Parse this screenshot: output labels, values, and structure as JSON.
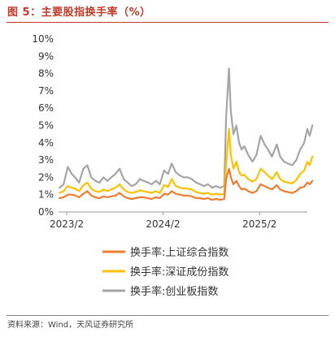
{
  "figure_title": "图 5：主要股指换手率（%）",
  "source": "资料来源：Wind，天风证券研究所",
  "chart_data": {
    "type": "line",
    "title": "",
    "xlabel": "",
    "ylabel": "",
    "ylim": [
      0,
      10
    ],
    "yticks": [
      "0%",
      "1%",
      "2%",
      "3%",
      "4%",
      "5%",
      "6%",
      "7%",
      "8%",
      "9%",
      "10%"
    ],
    "x_start": "2023-01",
    "x_end": "2025-08",
    "xticks": [
      "2023/2",
      "2024/2",
      "2025/2"
    ],
    "grid": false,
    "legend_position": "bottom",
    "series": [
      {
        "name": "换手率:上证综合指数",
        "color": "#ed7d31",
        "x": [
          "2023-01-05",
          "2023-01-20",
          "2023-02-05",
          "2023-02-20",
          "2023-03-05",
          "2023-03-20",
          "2023-04-05",
          "2023-04-20",
          "2023-05-05",
          "2023-05-20",
          "2023-06-05",
          "2023-06-20",
          "2023-07-05",
          "2023-07-20",
          "2023-08-05",
          "2023-08-20",
          "2023-09-05",
          "2023-09-20",
          "2023-10-05",
          "2023-10-20",
          "2023-11-05",
          "2023-11-20",
          "2023-12-05",
          "2023-12-20",
          "2024-01-05",
          "2024-01-20",
          "2024-02-05",
          "2024-02-20",
          "2024-03-05",
          "2024-03-20",
          "2024-04-05",
          "2024-04-20",
          "2024-05-05",
          "2024-05-20",
          "2024-06-05",
          "2024-06-20",
          "2024-07-05",
          "2024-07-20",
          "2024-08-05",
          "2024-08-20",
          "2024-09-05",
          "2024-09-20",
          "2024-09-27",
          "2024-10-08",
          "2024-10-15",
          "2024-10-25",
          "2024-11-05",
          "2024-11-15",
          "2024-11-25",
          "2024-12-05",
          "2024-12-20",
          "2025-01-05",
          "2025-01-20",
          "2025-02-05",
          "2025-02-20",
          "2025-03-05",
          "2025-03-20",
          "2025-04-07",
          "2025-04-20",
          "2025-05-05",
          "2025-05-20",
          "2025-06-05",
          "2025-06-20",
          "2025-07-05",
          "2025-07-20",
          "2025-08-01",
          "2025-08-10",
          "2025-08-20"
        ],
        "values": [
          0.8,
          0.85,
          1.0,
          1.0,
          0.95,
          0.85,
          1.05,
          1.2,
          0.95,
          0.85,
          0.8,
          0.9,
          0.85,
          0.9,
          0.95,
          1.1,
          0.9,
          0.8,
          0.75,
          0.8,
          0.85,
          0.85,
          0.8,
          0.75,
          0.85,
          0.8,
          1.05,
          1.0,
          1.2,
          1.05,
          1.0,
          0.95,
          0.95,
          0.9,
          0.8,
          0.8,
          0.75,
          0.8,
          0.7,
          0.75,
          0.7,
          0.75,
          1.9,
          2.5,
          2.0,
          1.6,
          1.8,
          1.5,
          1.3,
          1.35,
          1.2,
          1.1,
          1.2,
          1.6,
          1.5,
          1.4,
          1.3,
          1.55,
          1.3,
          1.2,
          1.15,
          1.1,
          1.2,
          1.4,
          1.45,
          1.7,
          1.6,
          1.8
        ]
      },
      {
        "name": "换手率:深证成份指数",
        "color": "#ffc000",
        "x": [
          "2023-01-05",
          "2023-01-20",
          "2023-02-05",
          "2023-02-20",
          "2023-03-05",
          "2023-03-20",
          "2023-04-05",
          "2023-04-20",
          "2023-05-05",
          "2023-05-20",
          "2023-06-05",
          "2023-06-20",
          "2023-07-05",
          "2023-07-20",
          "2023-08-05",
          "2023-08-20",
          "2023-09-05",
          "2023-09-20",
          "2023-10-05",
          "2023-10-20",
          "2023-11-05",
          "2023-11-20",
          "2023-12-05",
          "2023-12-20",
          "2024-01-05",
          "2024-01-20",
          "2024-02-05",
          "2024-02-20",
          "2024-03-05",
          "2024-03-20",
          "2024-04-05",
          "2024-04-20",
          "2024-05-05",
          "2024-05-20",
          "2024-06-05",
          "2024-06-20",
          "2024-07-05",
          "2024-07-20",
          "2024-08-05",
          "2024-08-20",
          "2024-09-05",
          "2024-09-20",
          "2024-09-27",
          "2024-10-08",
          "2024-10-15",
          "2024-10-25",
          "2024-11-05",
          "2024-11-15",
          "2024-11-25",
          "2024-12-05",
          "2024-12-20",
          "2025-01-05",
          "2025-01-20",
          "2025-02-05",
          "2025-02-20",
          "2025-03-05",
          "2025-03-20",
          "2025-04-07",
          "2025-04-20",
          "2025-05-05",
          "2025-05-20",
          "2025-06-05",
          "2025-06-20",
          "2025-07-05",
          "2025-07-20",
          "2025-08-01",
          "2025-08-10",
          "2025-08-20"
        ],
        "values": [
          1.1,
          1.2,
          1.5,
          1.4,
          1.35,
          1.2,
          1.55,
          1.7,
          1.35,
          1.2,
          1.15,
          1.3,
          1.2,
          1.3,
          1.4,
          1.6,
          1.3,
          1.15,
          1.1,
          1.15,
          1.25,
          1.2,
          1.15,
          1.1,
          1.2,
          1.1,
          1.55,
          1.45,
          1.9,
          1.5,
          1.4,
          1.35,
          1.35,
          1.3,
          1.15,
          1.1,
          1.05,
          1.1,
          1.0,
          1.05,
          1.0,
          1.05,
          2.8,
          4.8,
          3.3,
          2.5,
          2.9,
          2.3,
          2.1,
          2.15,
          1.9,
          1.75,
          1.9,
          2.5,
          2.3,
          2.1,
          1.9,
          2.3,
          1.9,
          1.75,
          1.7,
          1.65,
          1.85,
          2.2,
          2.4,
          2.9,
          2.7,
          3.2
        ]
      },
      {
        "name": "换手率:创业板指数",
        "color": "#a5a5a5",
        "x": [
          "2023-01-05",
          "2023-01-20",
          "2023-02-05",
          "2023-02-20",
          "2023-03-05",
          "2023-03-20",
          "2023-04-05",
          "2023-04-20",
          "2023-05-05",
          "2023-05-20",
          "2023-06-05",
          "2023-06-20",
          "2023-07-05",
          "2023-07-20",
          "2023-08-05",
          "2023-08-20",
          "2023-09-05",
          "2023-09-20",
          "2023-10-05",
          "2023-10-20",
          "2023-11-05",
          "2023-11-20",
          "2023-12-05",
          "2023-12-20",
          "2024-01-05",
          "2024-01-20",
          "2024-02-05",
          "2024-02-20",
          "2024-03-05",
          "2024-03-20",
          "2024-04-05",
          "2024-04-20",
          "2024-05-05",
          "2024-05-20",
          "2024-06-05",
          "2024-06-20",
          "2024-07-05",
          "2024-07-20",
          "2024-08-05",
          "2024-08-20",
          "2024-09-05",
          "2024-09-20",
          "2024-09-27",
          "2024-10-08",
          "2024-10-15",
          "2024-10-25",
          "2024-11-05",
          "2024-11-15",
          "2024-11-25",
          "2024-12-05",
          "2024-12-20",
          "2025-01-05",
          "2025-01-20",
          "2025-02-05",
          "2025-02-20",
          "2025-03-05",
          "2025-03-20",
          "2025-04-07",
          "2025-04-20",
          "2025-05-05",
          "2025-05-20",
          "2025-06-05",
          "2025-06-20",
          "2025-07-05",
          "2025-07-20",
          "2025-08-01",
          "2025-08-10",
          "2025-08-20"
        ],
        "values": [
          1.4,
          1.6,
          2.6,
          2.2,
          2.0,
          1.7,
          2.5,
          2.7,
          2.0,
          1.8,
          1.7,
          2.0,
          1.8,
          2.0,
          2.2,
          2.5,
          1.9,
          1.7,
          1.5,
          1.6,
          1.9,
          1.8,
          1.7,
          1.6,
          1.8,
          1.6,
          2.4,
          2.2,
          2.8,
          2.3,
          2.1,
          2.0,
          2.0,
          1.9,
          1.7,
          1.6,
          1.5,
          1.6,
          1.4,
          1.5,
          1.4,
          1.5,
          5.5,
          8.3,
          5.8,
          4.5,
          5.0,
          4.0,
          3.6,
          3.8,
          3.3,
          2.9,
          3.3,
          4.4,
          3.9,
          3.6,
          3.2,
          3.9,
          3.2,
          2.9,
          2.8,
          2.7,
          3.0,
          3.6,
          4.0,
          4.8,
          4.4,
          5.0
        ]
      }
    ]
  }
}
